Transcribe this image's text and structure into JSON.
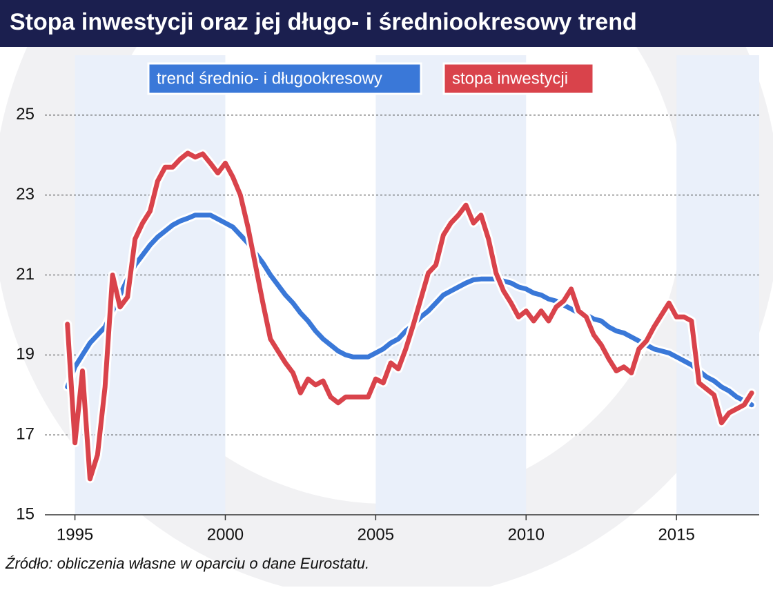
{
  "chart_data": {
    "type": "line",
    "title": "Stopa inwestycji oraz jej długo- i średniookresowy trend",
    "source": "Źródło: obliczenia własne w oparciu o dane Eurostatu.",
    "xlim": [
      1994,
      2017.75
    ],
    "xticks": [
      1995,
      2000,
      2005,
      2010,
      2015
    ],
    "ylim": [
      15,
      26.5
    ],
    "yticks": [
      15,
      17,
      19,
      21,
      23,
      25
    ],
    "grid": true,
    "bands": [
      [
        1995,
        2000
      ],
      [
        2005,
        2010
      ],
      [
        2015,
        2017.75
      ]
    ],
    "x": [
      1994.75,
      1995,
      1995.25,
      1995.5,
      1995.75,
      1996,
      1996.25,
      1996.5,
      1996.75,
      1997,
      1997.25,
      1997.5,
      1997.75,
      1998,
      1998.25,
      1998.5,
      1998.75,
      1999,
      1999.25,
      1999.5,
      1999.75,
      2000,
      2000.25,
      2000.5,
      2000.75,
      2001,
      2001.25,
      2001.5,
      2001.75,
      2002,
      2002.25,
      2002.5,
      2002.75,
      2003,
      2003.25,
      2003.5,
      2003.75,
      2004,
      2004.25,
      2004.5,
      2004.75,
      2005,
      2005.25,
      2005.5,
      2005.75,
      2006,
      2006.25,
      2006.5,
      2006.75,
      2007,
      2007.25,
      2007.5,
      2007.75,
      2008,
      2008.25,
      2008.5,
      2008.75,
      2009,
      2009.25,
      2009.5,
      2009.75,
      2010,
      2010.25,
      2010.5,
      2010.75,
      2011,
      2011.25,
      2011.5,
      2011.75,
      2012,
      2012.25,
      2012.5,
      2012.75,
      2013,
      2013.25,
      2013.5,
      2013.75,
      2014,
      2014.25,
      2014.5,
      2014.75,
      2015,
      2015.25,
      2015.5,
      2015.75,
      2016,
      2016.25,
      2016.5,
      2016.75,
      2017,
      2017.25,
      2017.5
    ],
    "series": [
      {
        "name": "trend średnio- i długookresowy",
        "color": "#3a78d8",
        "values": [
          18.2,
          18.7,
          19.0,
          19.3,
          19.5,
          19.7,
          20.1,
          20.5,
          20.9,
          21.25,
          21.5,
          21.75,
          21.95,
          22.1,
          22.25,
          22.35,
          22.42,
          22.5,
          22.5,
          22.5,
          22.4,
          22.3,
          22.2,
          22.0,
          21.8,
          21.55,
          21.3,
          21.0,
          20.75,
          20.5,
          20.3,
          20.05,
          19.85,
          19.6,
          19.4,
          19.25,
          19.1,
          19.0,
          18.95,
          18.95,
          18.95,
          19.05,
          19.15,
          19.3,
          19.4,
          19.6,
          19.75,
          19.95,
          20.1,
          20.3,
          20.5,
          20.6,
          20.7,
          20.8,
          20.88,
          20.9,
          20.9,
          20.9,
          20.85,
          20.8,
          20.7,
          20.65,
          20.55,
          20.5,
          20.4,
          20.35,
          20.25,
          20.15,
          20.05,
          20.0,
          19.9,
          19.85,
          19.7,
          19.6,
          19.55,
          19.45,
          19.35,
          19.25,
          19.15,
          19.1,
          19.05,
          18.95,
          18.85,
          18.75,
          18.6,
          18.45,
          18.35,
          18.2,
          18.1,
          17.95,
          17.85,
          17.75
        ]
      },
      {
        "name": "stopa inwestycji",
        "color": "#d9434b",
        "values": [
          19.77,
          16.8,
          18.6,
          15.9,
          16.5,
          18.2,
          21.0,
          20.2,
          20.45,
          21.9,
          22.3,
          22.6,
          23.35,
          23.7,
          23.7,
          23.9,
          24.05,
          23.95,
          24.03,
          23.8,
          23.55,
          23.8,
          23.45,
          23.0,
          22.2,
          21.25,
          20.3,
          19.4,
          19.1,
          18.8,
          18.55,
          18.05,
          18.4,
          18.25,
          18.35,
          17.95,
          17.8,
          17.95,
          17.95,
          17.95,
          17.95,
          18.4,
          18.3,
          18.8,
          18.65,
          19.15,
          19.75,
          20.4,
          21.05,
          21.25,
          22.0,
          22.3,
          22.5,
          22.75,
          22.3,
          22.5,
          21.9,
          21.05,
          20.6,
          20.3,
          19.95,
          20.1,
          19.85,
          20.1,
          19.85,
          20.2,
          20.35,
          20.65,
          20.1,
          19.95,
          19.5,
          19.25,
          18.9,
          18.6,
          18.7,
          18.55,
          19.15,
          19.35,
          19.7,
          20.0,
          20.3,
          19.95,
          19.95,
          19.85,
          18.3,
          18.15,
          18.0,
          17.3,
          17.55,
          17.65,
          17.75,
          18.05
        ]
      }
    ]
  }
}
